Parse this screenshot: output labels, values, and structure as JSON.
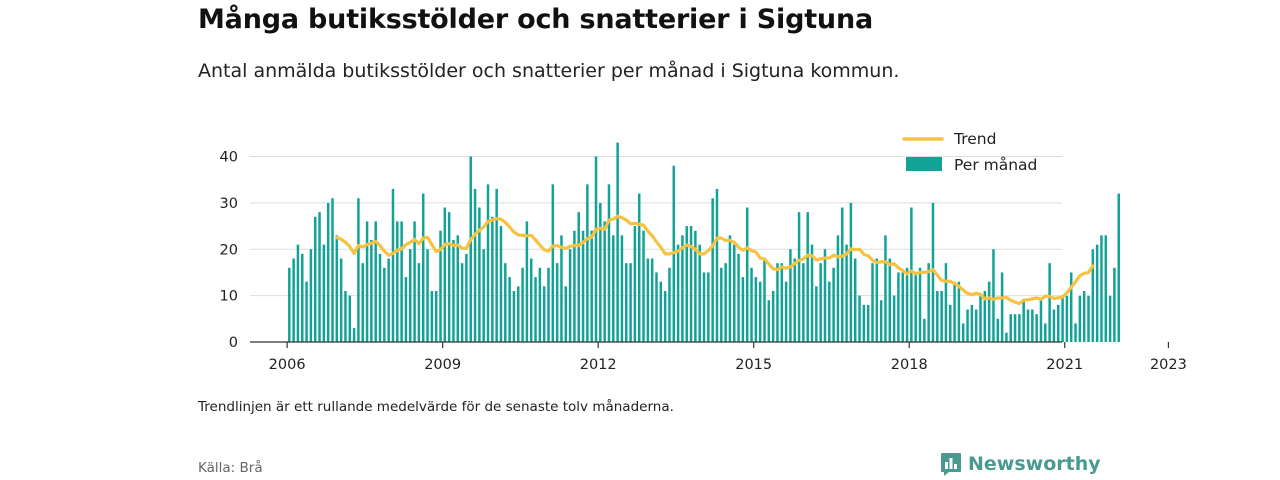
{
  "title": "Många butiksstölder och snatterier i Sigtuna",
  "subtitle": "Antal anmälda butiksstölder och snatterier per månad i Sigtuna kommun.",
  "note": "Trendlinjen är ett rullande medelvärde för de senaste tolv månaderna.",
  "source": "Källa: Brå",
  "brand": {
    "name": "Newsworthy",
    "icon": "bar-chart-logo-icon",
    "color": "#4a9a90"
  },
  "colors": {
    "bars": "#12a396",
    "trend": "#f5c242",
    "grid": "#dddddd",
    "axis": "#333333"
  },
  "chart_data": {
    "type": "bar",
    "title": "Många butiksstölder och snatterier i Sigtuna",
    "subtitle": "Antal anmälda butiksstölder och snatterier per månad i Sigtuna kommun.",
    "xlabel": "",
    "ylabel": "",
    "x_start": "2006-01",
    "ylim": [
      0,
      40
    ],
    "yticks": [
      0,
      10,
      20,
      30,
      40
    ],
    "xticks": [
      "2006",
      "2009",
      "2012",
      "2015",
      "2018",
      "2021",
      "2023"
    ],
    "grid": "horizontal",
    "legend_position": "top-right",
    "series": [
      {
        "name": "Per månad",
        "kind": "bar",
        "values": [
          16,
          18,
          21,
          19,
          13,
          20,
          27,
          28,
          21,
          30,
          31,
          23,
          18,
          11,
          10,
          3,
          31,
          17,
          26,
          22,
          26,
          19,
          16,
          18,
          33,
          26,
          26,
          14,
          20,
          26,
          17,
          32,
          20,
          11,
          11,
          24,
          29,
          28,
          22,
          23,
          17,
          19,
          40,
          33,
          29,
          20,
          34,
          27,
          33,
          25,
          17,
          14,
          11,
          12,
          16,
          26,
          18,
          14,
          16,
          12,
          16,
          34,
          17,
          23,
          12,
          20,
          24,
          28,
          24,
          34,
          24,
          40,
          30,
          26,
          34,
          23,
          43,
          23,
          17,
          17,
          25,
          32,
          24,
          18,
          18,
          15,
          13,
          11,
          16,
          38,
          21,
          23,
          25,
          25,
          24,
          21,
          15,
          15,
          31,
          33,
          16,
          17,
          23,
          21,
          19,
          14,
          29,
          16,
          14,
          13,
          18,
          9,
          11,
          17,
          17,
          13,
          20,
          18,
          28,
          17,
          28,
          21,
          12,
          17,
          20,
          13,
          16,
          23,
          29,
          21,
          30,
          18,
          10,
          8,
          8,
          17,
          18,
          9,
          23,
          18,
          10,
          15,
          15,
          16,
          29,
          15,
          16,
          5,
          17,
          30,
          11,
          11,
          17,
          8,
          13,
          13,
          4,
          7,
          8,
          7,
          10,
          11,
          13,
          20,
          5,
          15,
          2,
          6,
          6,
          6,
          9,
          7,
          7,
          6,
          9,
          4,
          17,
          7,
          8,
          10,
          10,
          15,
          4,
          10,
          11,
          10,
          20,
          21,
          23,
          23,
          10,
          16,
          32
        ]
      },
      {
        "name": "Trend",
        "kind": "line",
        "values": [
          null,
          null,
          null,
          null,
          null,
          null,
          null,
          null,
          null,
          null,
          null,
          22.5,
          22.2,
          21.5,
          20.6,
          19.1,
          20.8,
          20.5,
          21.0,
          21.3,
          21.7,
          20.8,
          19.6,
          18.7,
          19.1,
          19.8,
          20.1,
          21.0,
          21.5,
          22.1,
          21.2,
          22.4,
          22.6,
          21.0,
          19.5,
          19.9,
          21.0,
          21.2,
          20.8,
          20.9,
          20.2,
          20.2,
          22.1,
          23.2,
          24.1,
          24.8,
          26.0,
          26.3,
          26.6,
          26.5,
          25.8,
          24.8,
          23.7,
          23.1,
          23.0,
          22.9,
          23.0,
          22.0,
          20.9,
          19.9,
          19.6,
          20.7,
          20.8,
          20.4,
          20.2,
          20.6,
          20.8,
          20.8,
          21.5,
          22.3,
          22.6,
          24.3,
          24.5,
          24.3,
          26.3,
          26.5,
          27.1,
          26.8,
          26.3,
          25.5,
          25.6,
          25.4,
          25.2,
          23.9,
          22.9,
          21.6,
          20.4,
          19.0,
          19.0,
          19.3,
          19.6,
          20.3,
          20.9,
          20.6,
          20.0,
          19.0,
          19.0,
          19.7,
          20.7,
          22.4,
          22.4,
          21.9,
          21.9,
          21.5,
          20.4,
          19.8,
          20.3,
          19.7,
          19.4,
          18.1,
          17.9,
          16.8,
          15.8,
          15.6,
          16.2,
          15.9,
          16.2,
          16.9,
          17.6,
          17.9,
          18.7,
          18.6,
          17.7,
          17.9,
          18.1,
          18.1,
          18.7,
          18.4,
          18.5,
          19.0,
          20.1,
          19.9,
          20.0,
          18.9,
          18.6,
          17.6,
          17.1,
          17.3,
          17.3,
          16.7,
          16.9,
          16.0,
          15.4,
          14.7,
          15.3,
          14.7,
          15.0,
          15.0,
          15.2,
          15.6,
          14.4,
          13.3,
          13.1,
          13.1,
          12.6,
          12.0,
          11.2,
          10.5,
          10.2,
          10.5,
          10.3,
          9.3,
          9.5,
          9.2,
          9.5,
          9.5,
          9.6,
          9.0,
          8.6,
          8.3,
          9.0,
          9.1,
          9.3,
          9.5,
          9.2,
          9.9,
          9.8,
          9.4,
          9.5,
          9.7,
          10.6,
          11.8,
          13.0,
          14.3,
          14.8,
          15.0,
          16.4
        ]
      }
    ]
  }
}
